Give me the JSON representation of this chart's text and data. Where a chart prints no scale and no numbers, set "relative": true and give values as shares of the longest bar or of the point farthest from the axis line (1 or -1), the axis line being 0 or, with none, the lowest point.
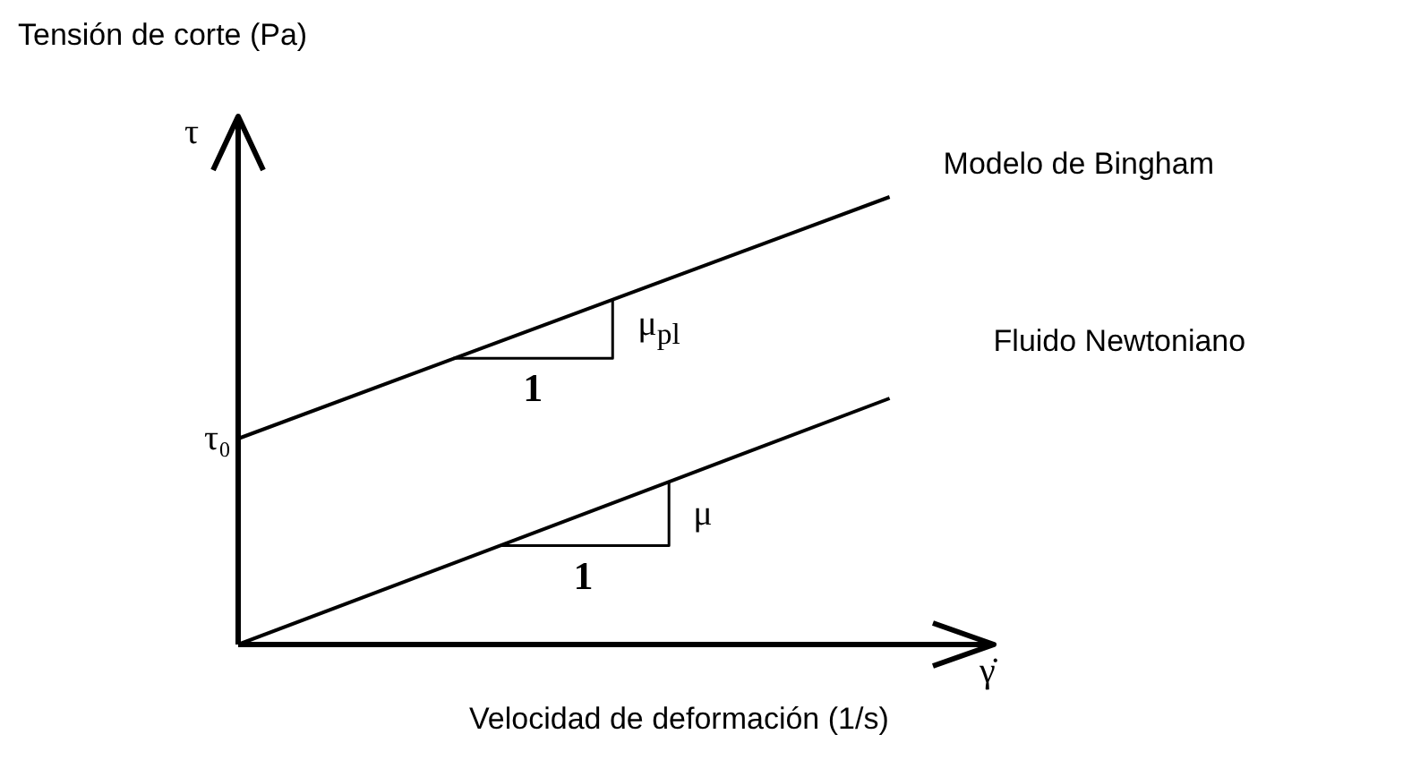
{
  "chart_data": {
    "type": "line",
    "relative": true,
    "ylabel": "Tensión de corte (Pa)",
    "xlabel": "Velocidad de deformación (1/s)",
    "categories": [
      null,
      null
    ],
    "series": [
      {
        "name": "Modelo de Bingham",
        "color": "#000000",
        "values": [
          0.46,
          1
        ]
      },
      {
        "name": "Fluido Newtoniano",
        "color": "#000000",
        "values": [
          0,
          0.55
        ]
      }
    ],
    "annotations": [
      "τ",
      "τ₀",
      "γ̇",
      "1",
      "μ$_{pl}$",
      "1",
      "μ"
    ],
    "legend": false,
    "marker": "none",
    "line_style": "solid"
  }
}
